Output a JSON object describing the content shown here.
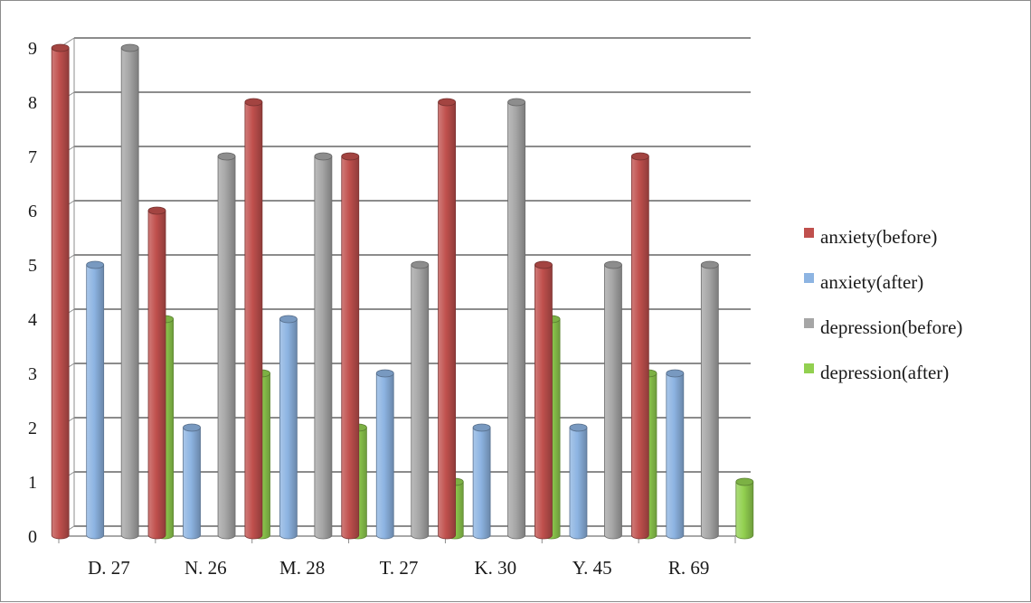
{
  "chart_data": {
    "type": "bar",
    "title": "",
    "xlabel": "",
    "ylabel": "",
    "categories": [
      "D. 27",
      "N. 26",
      "M. 28",
      "T. 27",
      "K. 30",
      "Y. 45",
      "R. 69"
    ],
    "ylim": [
      0,
      9
    ],
    "yticks": [
      "0",
      "1",
      "2",
      "3",
      "4",
      "5",
      "6",
      "7",
      "8",
      "9"
    ],
    "grid": true,
    "legend_position": "right",
    "series": [
      {
        "name": "anxiety(before)",
        "color": "#c0504d",
        "values": [
          9,
          6,
          8,
          7,
          8,
          5,
          7
        ]
      },
      {
        "name": "anxiety(after)",
        "color": "#8db4e2",
        "values": [
          5,
          2,
          4,
          3,
          2,
          2,
          3
        ]
      },
      {
        "name": "depression(before)",
        "color": "#a6a6a6",
        "values": [
          9,
          7,
          7,
          5,
          8,
          5,
          5
        ]
      },
      {
        "name": "depression(after)",
        "color": "#92d050",
        "values": [
          4,
          3,
          2,
          1,
          4,
          3,
          1
        ]
      }
    ]
  }
}
